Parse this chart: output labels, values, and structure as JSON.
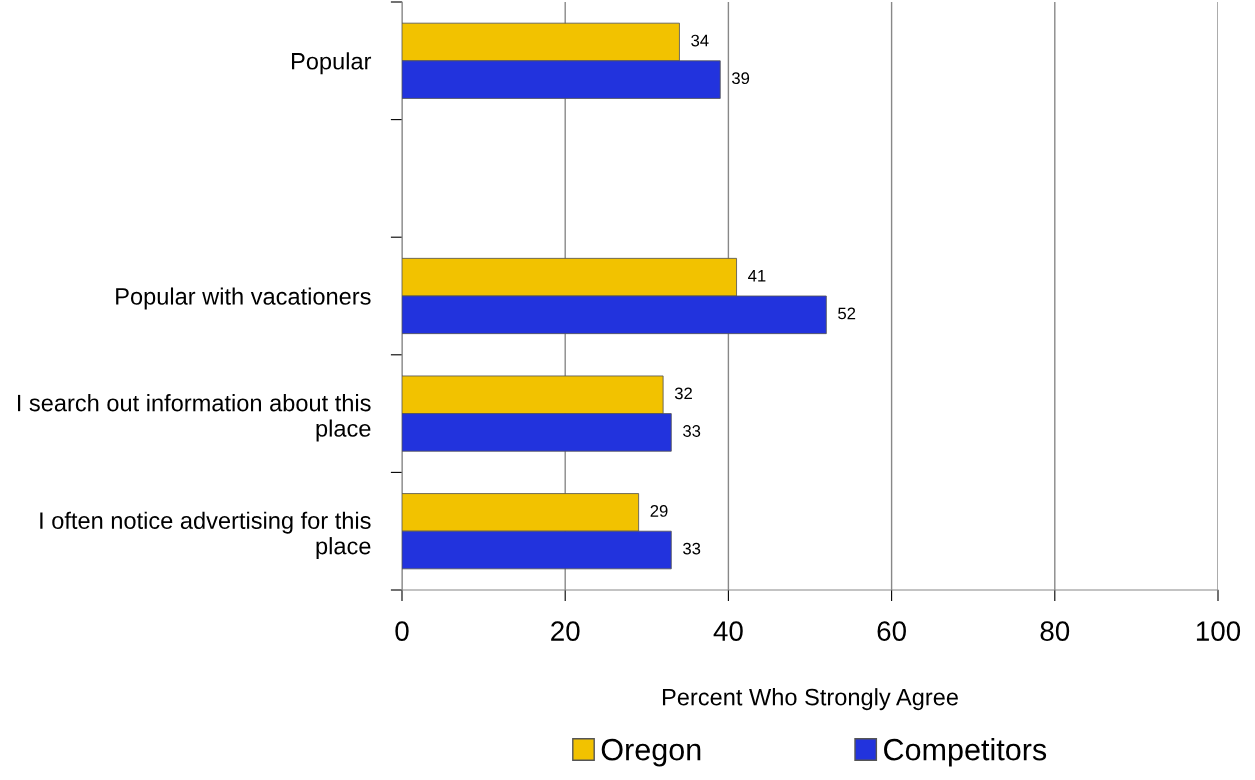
{
  "chart_data": {
    "type": "bar",
    "orientation": "horizontal",
    "categories": [
      "Popular",
      null,
      "Popular with vacationers",
      "I search out information about this place",
      "I often notice advertising for this place"
    ],
    "series": [
      {
        "name": "Oregon",
        "color": "#f2c200",
        "values": [
          34,
          null,
          41,
          32,
          29
        ]
      },
      {
        "name": "Competitors",
        "color": "#2233dd",
        "values": [
          39,
          null,
          52,
          33,
          33
        ]
      }
    ],
    "xlabel": "Percent Who Strongly Agree",
    "xlim": [
      0,
      100
    ],
    "xticks": [
      0,
      20,
      40,
      60,
      80,
      100
    ],
    "grid": "x",
    "legend": "bottom",
    "data_labels": true
  }
}
